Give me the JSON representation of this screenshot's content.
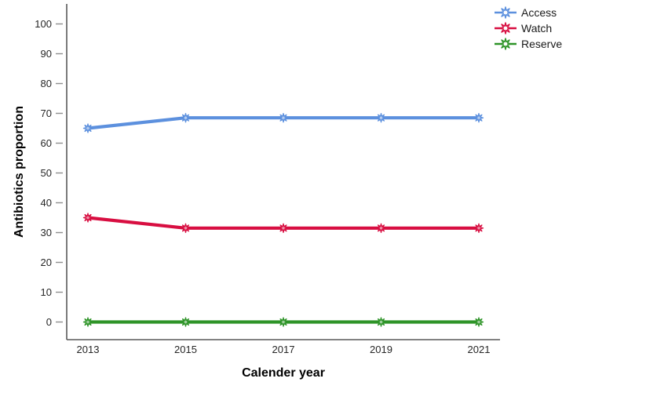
{
  "page": {
    "background_color": "#ffffff"
  },
  "chart_data": {
    "type": "line",
    "title": "",
    "xlabel": "Calender year",
    "ylabel": "Antibiotics proportion",
    "x": [
      2013,
      2015,
      2017,
      2019,
      2021
    ],
    "x_tick_labels": [
      "2013",
      "2015",
      "2017",
      "2019",
      "2021"
    ],
    "y_ticks": [
      0,
      10,
      20,
      30,
      40,
      50,
      60,
      70,
      80,
      90,
      100
    ],
    "y_tick_labels": [
      "0",
      "10",
      "20",
      "30",
      "40",
      "50",
      "60",
      "70",
      "80",
      "90",
      "100"
    ],
    "xlim": [
      2013,
      2021
    ],
    "ylim": [
      0,
      100
    ],
    "grid": false,
    "legend_position": "top-right",
    "marker": "star-burst",
    "series": [
      {
        "name": "Access",
        "color": "#5C90DE",
        "values": [
          65,
          68.5,
          68.5,
          68.5,
          68.5
        ]
      },
      {
        "name": "Watch",
        "color": "#D80E41",
        "values": [
          35,
          31.5,
          31.5,
          31.5,
          31.5
        ]
      },
      {
        "name": "Reserve",
        "color": "#2E9428",
        "values": [
          0,
          0,
          0,
          0,
          0
        ]
      }
    ],
    "colors": {
      "axis_line": "#595959",
      "tick_mark": "#8f8f8f",
      "tick_label": "#262626"
    }
  }
}
